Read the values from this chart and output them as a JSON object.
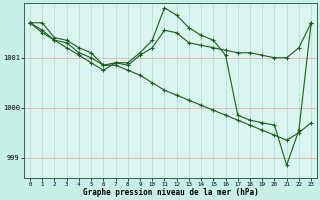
{
  "xlabel": "Graphe pression niveau de la mer (hPa)",
  "background_color": "#c8eee8",
  "plot_bg_color": "#daf5f0",
  "line_color": "#1a5c1a",
  "grid_color_v": "#b0ddd5",
  "grid_color_h": "#f0a0a0",
  "x_ticks": [
    0,
    1,
    2,
    3,
    4,
    5,
    6,
    7,
    8,
    9,
    10,
    11,
    12,
    13,
    14,
    15,
    16,
    17,
    18,
    19,
    20,
    21,
    22,
    23
  ],
  "ylim": [
    998.6,
    1002.1
  ],
  "yticks": [
    999,
    1000,
    1001
  ],
  "series1_x": [
    0,
    1,
    2,
    3,
    4,
    5,
    6,
    7,
    8,
    9,
    10,
    11,
    12,
    13,
    14,
    15,
    16,
    17,
    18,
    19,
    20,
    21,
    22,
    23
  ],
  "series1_y": [
    1001.7,
    1001.7,
    1001.4,
    1001.35,
    1001.2,
    1001.1,
    1000.85,
    1000.85,
    1000.75,
    1000.65,
    1000.5,
    1000.35,
    1000.25,
    1000.15,
    1000.05,
    999.95,
    999.85,
    999.75,
    999.65,
    999.55,
    999.45,
    999.35,
    999.5,
    999.7
  ],
  "series2_x": [
    0,
    1,
    2,
    3,
    4,
    5,
    6,
    7,
    8,
    9,
    10,
    11,
    12,
    13,
    14,
    15,
    16,
    17,
    18,
    19,
    20,
    21,
    22,
    23
  ],
  "series2_y": [
    1001.7,
    1001.55,
    1001.35,
    1001.3,
    1001.1,
    1001.0,
    1000.85,
    1000.9,
    1000.85,
    1001.05,
    1001.2,
    1001.55,
    1001.5,
    1001.3,
    1001.25,
    1001.2,
    1001.15,
    1001.1,
    1001.1,
    1001.05,
    1001.0,
    1001.0,
    1001.2,
    1001.7
  ],
  "series3_x": [
    0,
    1,
    2,
    3,
    4,
    5,
    6,
    7,
    8,
    9,
    10,
    11,
    12,
    13,
    14,
    15,
    16,
    17,
    18,
    19,
    20,
    21,
    22,
    23
  ],
  "series3_y": [
    1001.7,
    1001.5,
    1001.35,
    1001.2,
    1001.05,
    1000.9,
    1000.75,
    1000.9,
    1000.9,
    1001.1,
    1001.35,
    1002.0,
    1001.85,
    1001.6,
    1001.45,
    1001.35,
    1001.05,
    999.85,
    999.75,
    999.7,
    999.65,
    998.85,
    999.55,
    1001.7
  ]
}
